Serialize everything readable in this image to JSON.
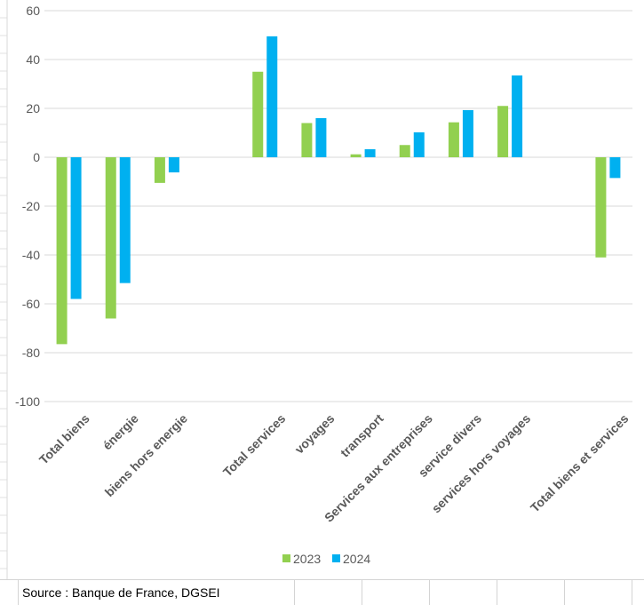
{
  "chart_data": {
    "type": "bar",
    "title": "",
    "xlabel": "",
    "ylabel": "",
    "ylim": [
      -100,
      60
    ],
    "yticks": [
      60,
      40,
      20,
      0,
      -20,
      -40,
      -60,
      -80,
      -100
    ],
    "ytick_labels": [
      "60",
      "40",
      "20",
      "0",
      "-20",
      "-40",
      "-60",
      "-80",
      "-100"
    ],
    "grid": true,
    "legend_position": "bottom-center",
    "categories": [
      "Total biens",
      "énergie",
      "biens hors energie",
      "",
      "Total services",
      "voyages",
      "transport",
      "Services aux entreprises",
      "service divers",
      "services hors voyages",
      "",
      "Total biens et services"
    ],
    "series": [
      {
        "name": "2023",
        "color": "#92d050",
        "values": [
          -76.5,
          -66,
          -10.5,
          null,
          35,
          14,
          1.2,
          5,
          14.3,
          21,
          null,
          -41
        ]
      },
      {
        "name": "2024",
        "color": "#00b0f0",
        "values": [
          -58,
          -51.5,
          -6.2,
          null,
          49.5,
          16,
          3.3,
          10.2,
          19.3,
          33.5,
          null,
          -8.5
        ]
      }
    ]
  },
  "source": {
    "text": "Source : Banque de France, DGSEI"
  }
}
